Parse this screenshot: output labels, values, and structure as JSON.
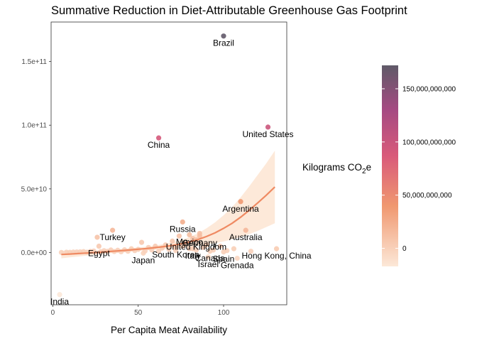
{
  "chart_data": {
    "type": "scatter",
    "title": "Summative Reduction in Diet-Attributable Greenhouse Gas Footprint",
    "xlabel": "Per Capita Meat Availability",
    "ylabel": "",
    "xlim": [
      -1,
      137
    ],
    "ylim": [
      -41000000000,
      181000000000
    ],
    "xticks": [
      0,
      50,
      100
    ],
    "yticks": [
      0,
      50000000000,
      100000000000,
      150000000000
    ],
    "ytick_labels": [
      "0.0e+00",
      "5.0e+10",
      "1.0e+11",
      "1.5e+11"
    ],
    "grid": false,
    "colors": {
      "low": "#fce8d8",
      "mid1": "#f09870",
      "mid2": "#d95a7a",
      "mid3": "#a54a82",
      "high": "#5f5a68",
      "smooth_line": "#ef8a62",
      "smooth_band": "#fde4cf"
    },
    "legend": {
      "title_main": "Kilograms CO",
      "title_sub": "2",
      "title_end": "e",
      "placement": "right",
      "min": -17000000000,
      "max": 172000000000,
      "ticks": [
        0,
        50000000000,
        100000000000,
        150000000000
      ],
      "tick_labels": [
        "0",
        "50,000,000,000",
        "100,000,000,000",
        "150,000,000,000"
      ]
    },
    "labeled_points": [
      {
        "name": "Brazil",
        "x": 100,
        "y": 170000000000
      },
      {
        "name": "United States",
        "x": 126,
        "y": 98500000000
      },
      {
        "name": "China",
        "x": 62,
        "y": 90000000000
      },
      {
        "name": "Argentina",
        "x": 110,
        "y": 40000000000
      },
      {
        "name": "Russia",
        "x": 76,
        "y": 24000000000
      },
      {
        "name": "Turkey",
        "x": 35,
        "y": 17500000000
      },
      {
        "name": "Australia",
        "x": 113,
        "y": 17500000000
      },
      {
        "name": "Mexico",
        "x": 80,
        "y": 14000000000
      },
      {
        "name": "United Kingdom",
        "x": 84,
        "y": 10000000000
      },
      {
        "name": "Germany",
        "x": 86,
        "y": 13000000000
      },
      {
        "name": "Egypt",
        "x": 27,
        "y": 5000000000
      },
      {
        "name": "South Korea",
        "x": 72,
        "y": 4000000000
      },
      {
        "name": "Italy",
        "x": 82,
        "y": 3000000000
      },
      {
        "name": "Canada",
        "x": 92,
        "y": 1000000000
      },
      {
        "name": "Spain",
        "x": 100,
        "y": 500000000
      },
      {
        "name": "Japan",
        "x": 53,
        "y": -500000000
      },
      {
        "name": "Israel",
        "x": 91,
        "y": -3500000000
      },
      {
        "name": "Hong Kong, China",
        "x": 131,
        "y": 3000000000
      },
      {
        "name": "Grenada",
        "x": 108,
        "y": -4500000000
      },
      {
        "name": "India",
        "x": 4,
        "y": -33000000000
      }
    ],
    "cluster_points": [
      {
        "x": 5,
        "y": 100000000
      },
      {
        "x": 8,
        "y": 300000000
      },
      {
        "x": 10,
        "y": 200000000
      },
      {
        "x": 12,
        "y": 400000000
      },
      {
        "x": 14,
        "y": 500000000
      },
      {
        "x": 16,
        "y": 600000000
      },
      {
        "x": 18,
        "y": 800000000
      },
      {
        "x": 20,
        "y": 300000000
      },
      {
        "x": 22,
        "y": 900000000
      },
      {
        "x": 24,
        "y": 1200000000
      },
      {
        "x": 26,
        "y": 12000000000
      },
      {
        "x": 28,
        "y": 700000000
      },
      {
        "x": 30,
        "y": 1500000000
      },
      {
        "x": 32,
        "y": 1000000000
      },
      {
        "x": 34,
        "y": 2000000000
      },
      {
        "x": 36,
        "y": 800000000
      },
      {
        "x": 38,
        "y": 1800000000
      },
      {
        "x": 40,
        "y": 600000000
      },
      {
        "x": 42,
        "y": 2200000000
      },
      {
        "x": 44,
        "y": 1000000000
      },
      {
        "x": 46,
        "y": 3000000000
      },
      {
        "x": 48,
        "y": 1500000000
      },
      {
        "x": 50,
        "y": 2500000000
      },
      {
        "x": 52,
        "y": 8000000000
      },
      {
        "x": 54,
        "y": 1200000000
      },
      {
        "x": 56,
        "y": 4000000000
      },
      {
        "x": 58,
        "y": 2000000000
      },
      {
        "x": 60,
        "y": 5000000000
      },
      {
        "x": 62,
        "y": 1000000000
      },
      {
        "x": 64,
        "y": 3500000000
      },
      {
        "x": 66,
        "y": 6000000000
      },
      {
        "x": 68,
        "y": 2500000000
      },
      {
        "x": 70,
        "y": 9000000000
      },
      {
        "x": 72,
        "y": 1500000000
      },
      {
        "x": 74,
        "y": 13000000000
      },
      {
        "x": 76,
        "y": 5000000000
      },
      {
        "x": 78,
        "y": 7000000000
      },
      {
        "x": 80,
        "y": 3000000000
      },
      {
        "x": 82,
        "y": 11000000000
      },
      {
        "x": 84,
        "y": 2000000000
      },
      {
        "x": 86,
        "y": 15000000000
      },
      {
        "x": 88,
        "y": 4000000000
      },
      {
        "x": 90,
        "y": 6000000000
      },
      {
        "x": 94,
        "y": 2000000000
      },
      {
        "x": 98,
        "y": 5000000000
      },
      {
        "x": 102,
        "y": 1500000000
      },
      {
        "x": 106,
        "y": 3000000000
      },
      {
        "x": 116,
        "y": 1000000000
      }
    ],
    "smooth": {
      "x": [
        5,
        10,
        15,
        20,
        25,
        30,
        35,
        40,
        45,
        50,
        55,
        60,
        65,
        70,
        75,
        80,
        85,
        90,
        95,
        100,
        105,
        110,
        115,
        120,
        125,
        130
      ],
      "y": [
        -1500000000,
        -1200000000,
        -800000000,
        -400000000,
        0,
        500000000,
        1000000000,
        1500000000,
        2000000000,
        2600000000,
        3200000000,
        3900000000,
        4700000000,
        5600000000,
        6800000000,
        8300000000,
        10200000000,
        12600000000,
        15500000000,
        19000000000,
        23000000000,
        27800000000,
        33200000000,
        39000000000,
        45000000000,
        51500000000
      ],
      "lower": [
        -4500000000,
        -3800000000,
        -3100000000,
        -2400000000,
        -1700000000,
        -1000000000,
        -400000000,
        200000000,
        700000000,
        1200000000,
        1700000000,
        2200000000,
        2700000000,
        3200000000,
        3800000000,
        4500000000,
        5300000000,
        6200000000,
        7300000000,
        8700000000,
        10300000000,
        12200000000,
        14500000000,
        17000000000,
        20000000000,
        23000000000
      ],
      "upper": [
        1500000000,
        1400000000,
        1500000000,
        1600000000,
        1700000000,
        2000000000,
        2400000000,
        2800000000,
        3300000000,
        4000000000,
        4700000000,
        5600000000,
        6700000000,
        8000000000,
        9800000000,
        12100000000,
        15100000000,
        19000000000,
        23700000000,
        29300000000,
        35700000000,
        43400000000,
        51900000000,
        61000000000,
        70000000000,
        80000000000
      ]
    }
  }
}
